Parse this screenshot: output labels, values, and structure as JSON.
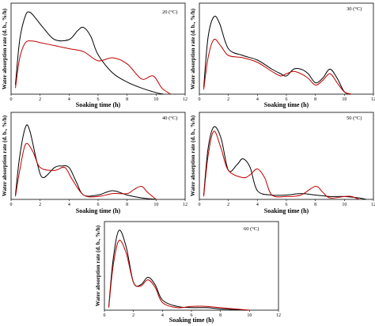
{
  "chart_data": [
    {
      "type": "line",
      "label": "20 (°C)",
      "xlabel": "Soaking time (h)",
      "ylabel": "Water absorption rate (d. b., %/h)",
      "xlim": [
        0,
        12
      ],
      "xticks": [
        0,
        2,
        4,
        6,
        8,
        10,
        12
      ],
      "ylim": [
        0,
        30
      ],
      "series": [
        {
          "color": "#000000",
          "x": [
            0.3,
            0.6,
            1.0,
            1.3,
            1.7,
            2.2,
            3.0,
            4.0,
            4.6,
            5.0,
            5.5,
            6.0,
            7.0,
            8.0,
            9.0,
            10.0,
            10.5
          ],
          "y": [
            3,
            18,
            26,
            27,
            25,
            22,
            18,
            18,
            21,
            22,
            19,
            13,
            7,
            4,
            2,
            0.5,
            0
          ]
        },
        {
          "color": "#c00000",
          "x": [
            0.3,
            0.6,
            1.0,
            1.5,
            2.0,
            3.0,
            4.0,
            5.0,
            6.0,
            7.0,
            8.0,
            9.0,
            9.8,
            10.4,
            11.0
          ],
          "y": [
            2,
            12,
            17,
            17.5,
            17,
            16,
            15,
            14,
            11,
            12,
            10,
            5,
            6,
            2,
            0
          ]
        }
      ]
    },
    {
      "type": "line",
      "label": "30 (°C)",
      "xlabel": "Soaking time (h)",
      "ylabel": "Water absorption rate (d. b., %/h)",
      "xlim": [
        0,
        12
      ],
      "xticks": [
        0,
        2,
        4,
        6,
        8,
        10,
        12
      ],
      "ylim": [
        0,
        40
      ],
      "series": [
        {
          "color": "#000000",
          "x": [
            0.3,
            0.6,
            1.0,
            1.4,
            2.0,
            3.0,
            4.0,
            5.0,
            5.6,
            6.0,
            6.5,
            7.0,
            7.5,
            8.0,
            8.5,
            9.0,
            9.5,
            10.0,
            10.5
          ],
          "y": [
            3,
            25,
            34,
            31,
            20,
            17,
            15,
            11,
            9,
            8,
            11,
            11,
            9,
            5,
            7,
            11,
            7,
            1,
            0
          ]
        },
        {
          "color": "#c00000",
          "x": [
            0.3,
            0.6,
            1.0,
            1.5,
            2.0,
            3.0,
            4.0,
            5.0,
            5.6,
            6.0,
            6.5,
            7.0,
            7.5,
            8.0,
            8.5,
            9.0,
            9.5,
            10.0,
            10.5
          ],
          "y": [
            2,
            16,
            24,
            21,
            17,
            16,
            14,
            10,
            8,
            9,
            10,
            9,
            7,
            4,
            6,
            9,
            5,
            1,
            0
          ]
        }
      ]
    },
    {
      "type": "line",
      "label": "40 (°C)",
      "xlabel": "Soaking time (h)",
      "ylabel": "Water absorption rate (d. b., %/h)",
      "xlim": [
        0,
        12
      ],
      "xticks": [
        0,
        2,
        4,
        6,
        8,
        10,
        12
      ],
      "ylim": [
        0,
        60
      ],
      "series": [
        {
          "color": "#000000",
          "x": [
            0.3,
            0.6,
            1.0,
            1.3,
            1.8,
            2.2,
            3.0,
            3.5,
            4.0,
            4.5,
            5.0,
            6.0,
            7.0,
            8.0,
            9.0,
            10.0
          ],
          "y": [
            3,
            30,
            50,
            47,
            25,
            15,
            22,
            23,
            22,
            12,
            3,
            3,
            6,
            3,
            1,
            0
          ]
        },
        {
          "color": "#c00000",
          "x": [
            0.3,
            0.6,
            1.0,
            1.5,
            2.0,
            3.0,
            3.7,
            4.2,
            5.0,
            6.0,
            7.0,
            8.0,
            8.5,
            9.0,
            9.4,
            10.0
          ],
          "y": [
            2,
            20,
            38,
            33,
            22,
            20,
            22,
            14,
            3,
            2,
            4,
            4,
            7,
            9,
            5,
            0
          ]
        }
      ]
    },
    {
      "type": "line",
      "label": "50 (°C)",
      "xlabel": "Soaking time (h)",
      "ylabel": "Water absorption rate (d. b., %/h)",
      "xlim": [
        0,
        12
      ],
      "xticks": [
        0,
        2,
        4,
        6,
        8,
        10,
        12
      ],
      "ylim": [
        0,
        60
      ],
      "series": [
        {
          "color": "#000000",
          "x": [
            0.3,
            0.6,
            1.0,
            1.5,
            2.0,
            2.6,
            3.0,
            3.5,
            4.0,
            5.0,
            6.0,
            7.0,
            8.0,
            9.0,
            10.0,
            11.0,
            11.5
          ],
          "y": [
            3,
            35,
            50,
            42,
            20,
            24,
            28,
            22,
            6,
            3,
            3,
            4,
            3,
            2,
            2,
            1,
            0
          ]
        },
        {
          "color": "#c00000",
          "x": [
            0.3,
            0.6,
            1.0,
            1.5,
            2.0,
            3.0,
            3.5,
            4.0,
            4.5,
            5.0,
            6.0,
            7.0,
            8.0,
            8.5,
            9.0,
            10.0,
            10.5,
            11.0
          ],
          "y": [
            2,
            30,
            47,
            35,
            20,
            15,
            17,
            21,
            15,
            3,
            2,
            3,
            9,
            5,
            1,
            2,
            2,
            0
          ]
        }
      ]
    },
    {
      "type": "line",
      "label": "60 (°C)",
      "xlabel": "Soaking time (h)",
      "ylabel": "Water absorption rate (d. b., %/h)",
      "xlim": [
        0,
        12
      ],
      "xticks": [
        0,
        2,
        4,
        6,
        8,
        10,
        12
      ],
      "ylim": [
        0,
        70
      ],
      "series": [
        {
          "color": "#000000",
          "x": [
            0.3,
            0.6,
            1.0,
            1.5,
            2.0,
            2.5,
            3.0,
            3.5,
            4.0,
            5.0,
            6.0,
            7.0,
            8.0,
            9.0,
            10.0
          ],
          "y": [
            3,
            40,
            63,
            50,
            22,
            20,
            26,
            20,
            8,
            3,
            2,
            2,
            1,
            0.5,
            0
          ]
        },
        {
          "color": "#c00000",
          "x": [
            0.3,
            0.6,
            1.0,
            1.5,
            2.0,
            2.5,
            3.0,
            3.5,
            4.0,
            5.0,
            6.0,
            7.0,
            8.0,
            9.0,
            10.0
          ],
          "y": [
            2,
            35,
            55,
            45,
            22,
            19,
            24,
            18,
            6,
            2,
            3,
            3,
            2,
            1,
            0
          ]
        }
      ]
    }
  ]
}
